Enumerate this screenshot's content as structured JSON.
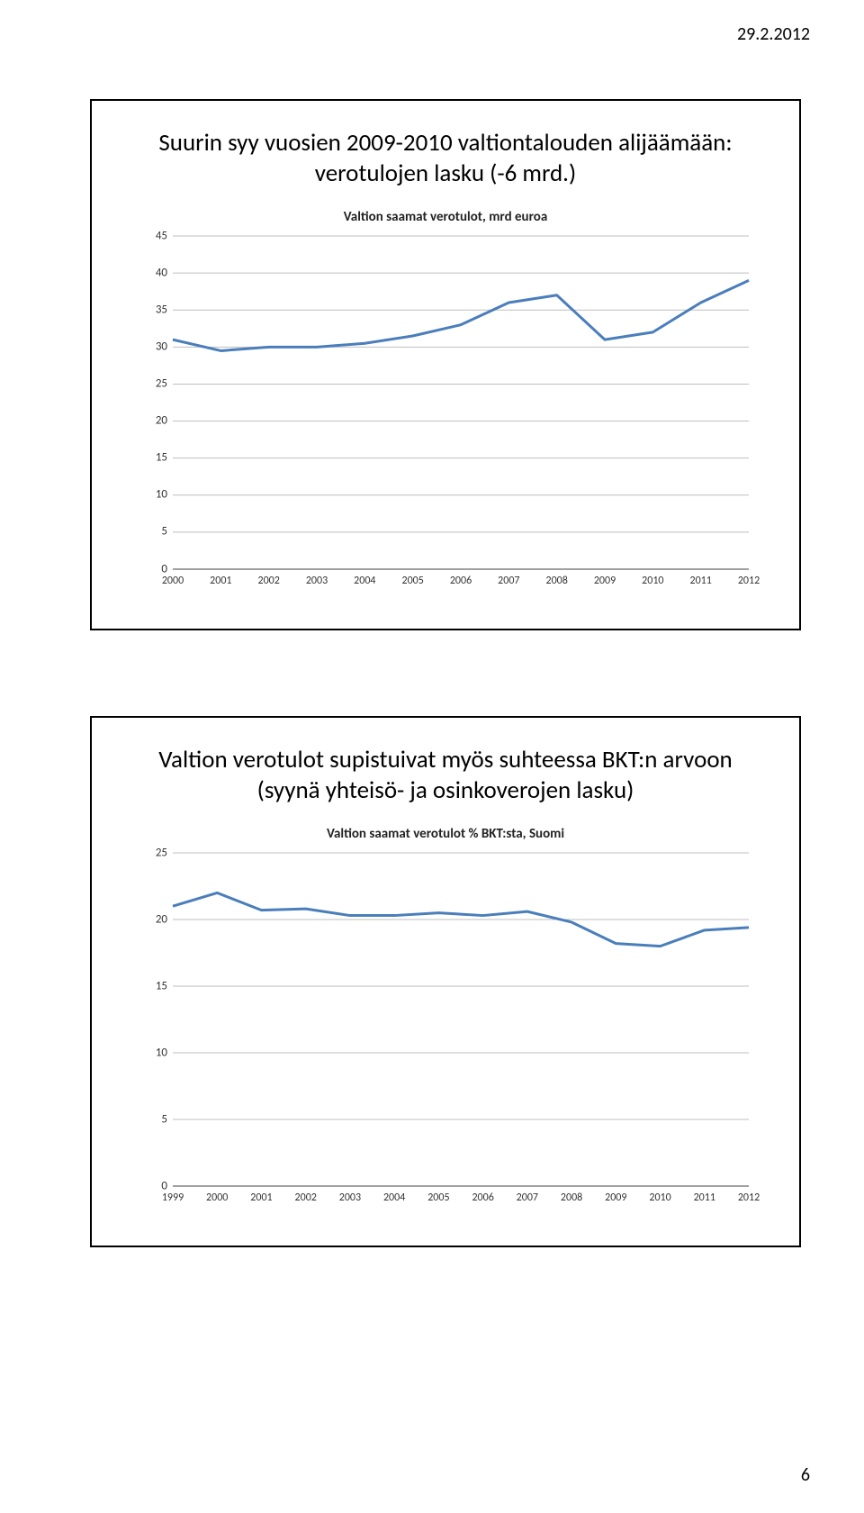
{
  "header": {
    "date": "29.2.2012"
  },
  "footer": {
    "page": "6"
  },
  "slide1": {
    "title": "Suurin syy vuosien 2009-2010 valtiontalouden alijäämään: verotulojen lasku (-6 mrd.)",
    "chart": {
      "type": "line",
      "subtitle": "Valtion saamat verotulot, mrd euroa",
      "x": [
        "2000",
        "2001",
        "2002",
        "2003",
        "2004",
        "2005",
        "2006",
        "2007",
        "2008",
        "2009",
        "2010",
        "2011",
        "2012"
      ],
      "y": [
        31,
        29.5,
        30,
        30,
        30.5,
        31.5,
        33,
        36,
        37,
        31,
        32,
        36,
        39
      ],
      "ylim": [
        0,
        45
      ],
      "yticks": [
        0,
        5,
        10,
        15,
        20,
        25,
        30,
        35,
        40,
        45
      ],
      "line_color": "#4a7ebb",
      "line_width": 3,
      "grid_color": "#bfbfbf",
      "background_color": "#ffffff",
      "label_fontsize": 13
    }
  },
  "slide2": {
    "title": "Valtion verotulot supistuivat myös suhteessa BKT:n arvoon (syynä yhteisö- ja osinkoverojen lasku)",
    "chart": {
      "type": "line",
      "subtitle": "Valtion saamat verotulot % BKT:sta, Suomi",
      "x": [
        "1999",
        "2000",
        "2001",
        "2002",
        "2003",
        "2004",
        "2005",
        "2006",
        "2007",
        "2008",
        "2009",
        "2010",
        "2011",
        "2012"
      ],
      "y": [
        21,
        22,
        20.7,
        20.8,
        20.3,
        20.3,
        20.5,
        20.3,
        20.6,
        19.8,
        18.2,
        18,
        19.2,
        19.4
      ],
      "ylim": [
        0,
        25
      ],
      "yticks": [
        0,
        5,
        10,
        15,
        20,
        25
      ],
      "line_color": "#4a7ebb",
      "line_width": 3,
      "grid_color": "#bfbfbf",
      "background_color": "#ffffff",
      "label_fontsize": 13
    }
  }
}
